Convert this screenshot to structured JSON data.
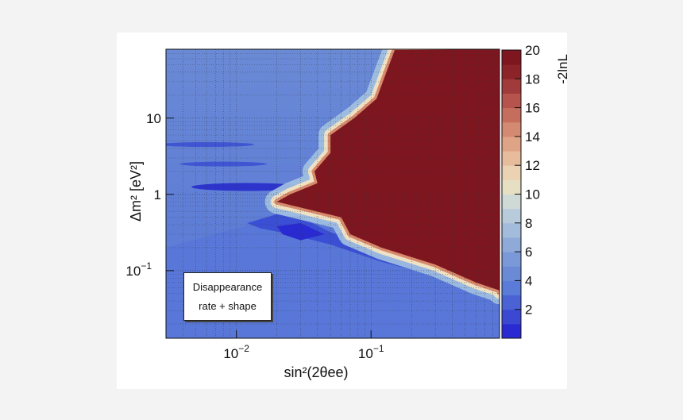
{
  "chart_data": {
    "type": "heatmap",
    "title": "",
    "xlabel": "sin²(2θee)",
    "ylabel": "Δm² [eV²]",
    "colorbar_label": "-2lnL",
    "x_scale": "log",
    "y_scale": "log",
    "xlim": [
      0.003,
      0.9
    ],
    "ylim": [
      0.013,
      80
    ],
    "x_ticks": [
      {
        "value": 0.01,
        "base": "10",
        "exp": "−2"
      },
      {
        "value": 0.1,
        "base": "10",
        "exp": "−1"
      }
    ],
    "y_ticks": [
      {
        "value": 0.1,
        "base": "10",
        "exp": "−1"
      },
      {
        "value": 1,
        "base": "1",
        "exp": ""
      },
      {
        "value": 10,
        "base": "10",
        "exp": ""
      }
    ],
    "zlim": [
      0,
      20
    ],
    "z_ticks": [
      "2",
      "4",
      "6",
      "8",
      "10",
      "12",
      "14",
      "16",
      "18",
      "20"
    ],
    "grid": true,
    "colors": {
      "low": "#2a2ad2",
      "mid": "#f2e6c8",
      "high": "#7e1620"
    },
    "saturated_region_boundary": [
      {
        "x": 0.15,
        "y": 78
      },
      {
        "x": 0.13,
        "y": 40
      },
      {
        "x": 0.11,
        "y": 18
      },
      {
        "x": 0.075,
        "y": 10
      },
      {
        "x": 0.05,
        "y": 6
      },
      {
        "x": 0.05,
        "y": 3.5
      },
      {
        "x": 0.038,
        "y": 2
      },
      {
        "x": 0.04,
        "y": 1.4
      },
      {
        "x": 0.025,
        "y": 1
      },
      {
        "x": 0.02,
        "y": 0.8
      },
      {
        "x": 0.06,
        "y": 0.5
      },
      {
        "x": 0.07,
        "y": 0.3
      },
      {
        "x": 0.12,
        "y": 0.2
      },
      {
        "x": 0.3,
        "y": 0.12
      },
      {
        "x": 0.6,
        "y": 0.07
      },
      {
        "x": 0.9,
        "y": 0.055
      }
    ],
    "annotations": [
      "Disappearance",
      "rate + shape"
    ]
  }
}
